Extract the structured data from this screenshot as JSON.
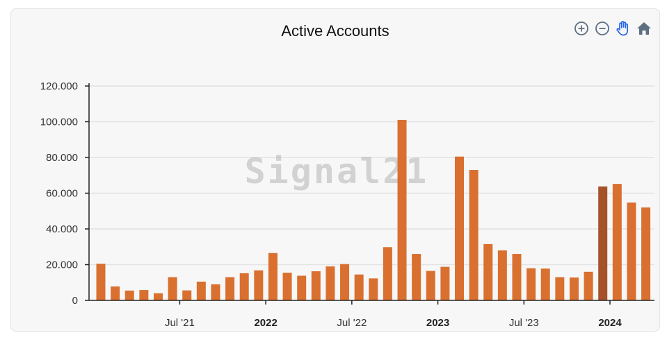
{
  "toolbar": {
    "zoom_in_icon": "zoom-in-icon",
    "zoom_out_icon": "zoom-out-icon",
    "pan_icon": "hand-pan-icon",
    "home_icon": "home-reset-icon"
  },
  "watermark": "Signal21",
  "colors": {
    "bar": "#d97030",
    "bar_highlight": "#a5522a",
    "grid": "#e2e2e2",
    "axis": "#222222",
    "icon": "#5e6f82",
    "icon_active": "#2563eb"
  },
  "chart_data": {
    "type": "bar",
    "title": "Active Accounts",
    "xlabel": "",
    "ylabel": "",
    "ylim": [
      0,
      120000
    ],
    "yticks": [
      0,
      20000,
      40000,
      60000,
      80000,
      100000,
      120000
    ],
    "ytick_labels": [
      "0",
      "20.000",
      "40.000",
      "60.000",
      "80.000",
      "100.000",
      "120.000"
    ],
    "grid": true,
    "xticks": [
      {
        "label": "Jul '21",
        "date": "2021-07",
        "bold": false
      },
      {
        "label": "2022",
        "date": "2022-01",
        "bold": true
      },
      {
        "label": "Jul '22",
        "date": "2022-07",
        "bold": false
      },
      {
        "label": "2023",
        "date": "2023-01",
        "bold": true
      },
      {
        "label": "Jul '23",
        "date": "2023-07",
        "bold": false
      },
      {
        "label": "2024",
        "date": "2024-01",
        "bold": true
      }
    ],
    "categories": [
      "2021-01",
      "2021-02",
      "2021-03",
      "2021-04",
      "2021-05",
      "2021-06",
      "2021-07",
      "2021-08",
      "2021-09",
      "2021-10",
      "2021-11",
      "2021-12",
      "2022-01",
      "2022-02",
      "2022-03",
      "2022-04",
      "2022-05",
      "2022-06",
      "2022-07",
      "2022-08",
      "2022-09",
      "2022-10",
      "2022-11",
      "2022-12",
      "2023-01",
      "2023-02",
      "2023-03",
      "2023-04",
      "2023-05",
      "2023-06",
      "2023-07",
      "2023-08",
      "2023-09",
      "2023-10",
      "2023-11",
      "2023-12",
      "2024-01",
      "2024-02",
      "2024-03"
    ],
    "values": [
      20500,
      7800,
      5500,
      5800,
      4000,
      13000,
      5600,
      10500,
      9000,
      13000,
      15200,
      16800,
      26500,
      15500,
      13800,
      16300,
      19000,
      20300,
      14500,
      12300,
      29800,
      101000,
      26000,
      16500,
      18800,
      80500,
      73000,
      31500,
      28000,
      26000,
      18000,
      17800,
      13000,
      12800,
      16000,
      63800,
      65200,
      54800,
      52000
    ],
    "highlighted_index": 35
  }
}
